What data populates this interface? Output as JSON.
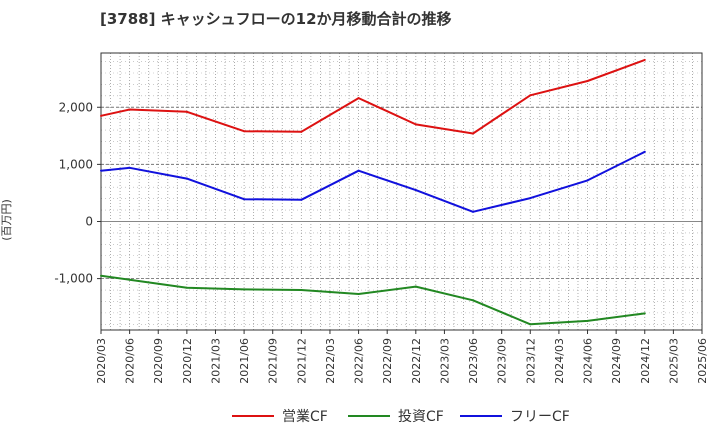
{
  "chart_data": {
    "type": "line",
    "title": "[3788]  キャッシュフローの12か月移動合計の推移",
    "ylabel": "(百万円)",
    "xlabel": "",
    "ylim": [
      -1900,
      2950
    ],
    "yticks": [
      -1000,
      0,
      1000,
      2000
    ],
    "ytick_labels": [
      "-1,000",
      "0",
      "1,000",
      "2,000"
    ],
    "categories": [
      "2020/03",
      "2020/06",
      "2020/09",
      "2020/12",
      "2021/03",
      "2021/06",
      "2021/09",
      "2021/12",
      "2022/03",
      "2022/06",
      "2022/09",
      "2022/12",
      "2023/03",
      "2023/06",
      "2023/09",
      "2023/12",
      "2024/03",
      "2024/06",
      "2024/09",
      "2024/12",
      "2025/03",
      "2025/06"
    ],
    "series": [
      {
        "name": "営業CF",
        "color": "#dd1111",
        "values": [
          1850,
          1960,
          null,
          1920,
          null,
          1580,
          null,
          1570,
          null,
          2160,
          null,
          1700,
          null,
          1540,
          null,
          2210,
          null,
          2460,
          null,
          2830,
          null,
          null
        ]
      },
      {
        "name": "投資CF",
        "color": "#228822",
        "values": [
          -950,
          -1020,
          null,
          -1160,
          null,
          -1190,
          null,
          -1200,
          null,
          -1270,
          null,
          -1140,
          null,
          -1380,
          null,
          -1800,
          null,
          -1740,
          null,
          -1610,
          null,
          null
        ]
      },
      {
        "name": "フリーCF",
        "color": "#1111dd",
        "values": [
          890,
          940,
          null,
          750,
          null,
          390,
          null,
          380,
          null,
          890,
          null,
          550,
          null,
          170,
          null,
          410,
          null,
          720,
          null,
          1220,
          null,
          null
        ]
      }
    ],
    "grid": true,
    "legend_position": "bottom"
  }
}
